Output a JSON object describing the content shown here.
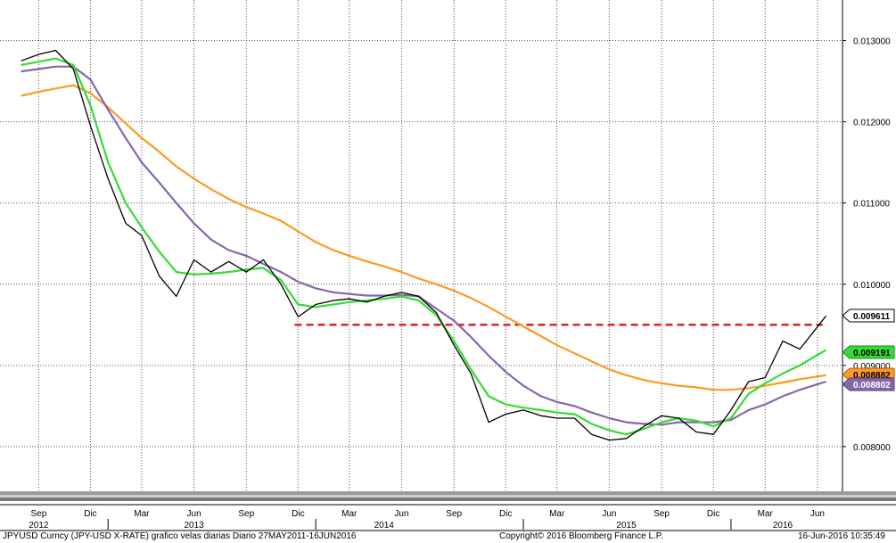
{
  "chart_data": {
    "type": "line",
    "x": [
      "2012-08-01",
      "2012-09-01",
      "2012-10-01",
      "2012-11-01",
      "2012-12-01",
      "2013-01-01",
      "2013-02-01",
      "2013-03-01",
      "2013-04-01",
      "2013-05-01",
      "2013-06-01",
      "2013-07-01",
      "2013-08-01",
      "2013-09-01",
      "2013-10-01",
      "2013-11-01",
      "2013-12-01",
      "2014-01-01",
      "2014-02-01",
      "2014-03-01",
      "2014-04-01",
      "2014-05-01",
      "2014-06-01",
      "2014-07-01",
      "2014-08-01",
      "2014-09-01",
      "2014-10-01",
      "2014-11-01",
      "2014-12-01",
      "2015-01-01",
      "2015-02-01",
      "2015-03-01",
      "2015-04-01",
      "2015-05-01",
      "2015-06-01",
      "2015-07-01",
      "2015-08-01",
      "2015-09-01",
      "2015-10-01",
      "2015-11-01",
      "2015-12-01",
      "2016-01-01",
      "2016-02-01",
      "2016-03-01",
      "2016-04-01",
      "2016-05-01",
      "2016-06-16"
    ],
    "series": [
      {
        "kind": "price",
        "color": "#000000",
        "values": [
          0.01275,
          0.01283,
          0.01288,
          0.01265,
          0.01195,
          0.0113,
          0.01075,
          0.0106,
          0.0101,
          0.00985,
          0.0103,
          0.01015,
          0.01028,
          0.01015,
          0.0103,
          0.01,
          0.0096,
          0.00975,
          0.0098,
          0.00982,
          0.00978,
          0.00985,
          0.0099,
          0.00985,
          0.00965,
          0.00925,
          0.0089,
          0.0083,
          0.0084,
          0.00845,
          0.00838,
          0.00835,
          0.00835,
          0.00815,
          0.00808,
          0.0081,
          0.00825,
          0.00838,
          0.00835,
          0.00818,
          0.00815,
          0.00845,
          0.0088,
          0.00885,
          0.0093,
          0.0092,
          0.00961
        ]
      },
      {
        "kind": "short-moving-average",
        "color": "#33dd33",
        "values": [
          0.0127,
          0.01274,
          0.01278,
          0.0127,
          0.0122,
          0.0115,
          0.011,
          0.0107,
          0.0104,
          0.01015,
          0.01012,
          0.01013,
          0.01015,
          0.01018,
          0.0102,
          0.01005,
          0.00975,
          0.00972,
          0.00975,
          0.00978,
          0.0098,
          0.00982,
          0.00985,
          0.0098,
          0.00962,
          0.0093,
          0.00895,
          0.00862,
          0.00852,
          0.00848,
          0.00845,
          0.00842,
          0.0084,
          0.00828,
          0.0082,
          0.00815,
          0.00822,
          0.0083,
          0.00835,
          0.00832,
          0.00825,
          0.00835,
          0.00865,
          0.00878,
          0.0089,
          0.009,
          0.00919
        ]
      },
      {
        "kind": "medium-moving-average",
        "color": "#8866aa",
        "values": [
          0.01262,
          0.01265,
          0.01268,
          0.01268,
          0.01252,
          0.01215,
          0.0118,
          0.0115,
          0.01125,
          0.011,
          0.01075,
          0.01055,
          0.01042,
          0.01035,
          0.01025,
          0.01015,
          0.01003,
          0.00995,
          0.0099,
          0.00988,
          0.00986,
          0.00986,
          0.00987,
          0.00985,
          0.0097,
          0.00955,
          0.00935,
          0.00912,
          0.00892,
          0.00875,
          0.00862,
          0.00855,
          0.0085,
          0.00842,
          0.00835,
          0.0083,
          0.00828,
          0.00827,
          0.0083,
          0.0083,
          0.0083,
          0.00833,
          0.00845,
          0.00852,
          0.00862,
          0.0087,
          0.0088
        ]
      },
      {
        "kind": "long-moving-average",
        "color": "#ff9922",
        "values": [
          0.01232,
          0.01237,
          0.01241,
          0.01245,
          0.01235,
          0.01218,
          0.01198,
          0.0118,
          0.01163,
          0.01145,
          0.0113,
          0.01117,
          0.01105,
          0.01095,
          0.01087,
          0.01078,
          0.01065,
          0.01052,
          0.01042,
          0.01035,
          0.01028,
          0.01022,
          0.01015,
          0.01007,
          0.01,
          0.00992,
          0.00983,
          0.00972,
          0.0096,
          0.00948,
          0.00936,
          0.00925,
          0.00915,
          0.00905,
          0.00895,
          0.00888,
          0.00882,
          0.00878,
          0.00875,
          0.00873,
          0.0087,
          0.0087,
          0.00872,
          0.00875,
          0.00879,
          0.00883,
          0.00888
        ]
      }
    ],
    "reference_line": {
      "value": 0.0095,
      "start": "2013-11-25",
      "end": "2016-06-10",
      "color": "#e02020",
      "style": "dashed"
    },
    "y_ticks": [
      "0.013000",
      "0.012000",
      "0.011000",
      "0.010000",
      "0.009000",
      "0.008000"
    ],
    "y_tick_values": [
      0.013,
      0.012,
      0.011,
      0.01,
      0.009,
      0.008
    ],
    "ylim": [
      0.00745,
      0.0135
    ],
    "xlim": [
      "2012-06-25",
      "2016-07-15"
    ],
    "x_ticks": [
      {
        "label": "Sep",
        "date": "2012-09-01"
      },
      {
        "label": "Dic",
        "date": "2012-12-01"
      },
      {
        "label": "Mar",
        "date": "2013-03-01"
      },
      {
        "label": "Jun",
        "date": "2013-06-01"
      },
      {
        "label": "Sep",
        "date": "2013-09-01"
      },
      {
        "label": "Dic",
        "date": "2013-12-01"
      },
      {
        "label": "Mar",
        "date": "2014-03-01"
      },
      {
        "label": "Jun",
        "date": "2014-06-01"
      },
      {
        "label": "Sep",
        "date": "2014-09-01"
      },
      {
        "label": "Dic",
        "date": "2014-12-01"
      },
      {
        "label": "Mar",
        "date": "2015-03-01"
      },
      {
        "label": "Jun",
        "date": "2015-06-01"
      },
      {
        "label": "Sep",
        "date": "2015-09-01"
      },
      {
        "label": "Dic",
        "date": "2015-12-01"
      },
      {
        "label": "Mar",
        "date": "2016-03-01"
      },
      {
        "label": "Jun",
        "date": "2016-06-01"
      }
    ],
    "year_labels": [
      {
        "label": "2012",
        "date": "2012-09-01"
      },
      {
        "label": "2013",
        "date": "2013-06-01"
      },
      {
        "label": "2014",
        "date": "2014-05-01"
      },
      {
        "label": "2015",
        "date": "2015-07-01"
      },
      {
        "label": "2016",
        "date": "2016-04-01"
      }
    ],
    "value_tags": [
      {
        "text": "0.009611",
        "value": 0.009611,
        "bg": "#ffffff",
        "fg": "#000000",
        "border": "#000000"
      },
      {
        "text": "0.009191",
        "value": 0.009191,
        "bg": "#33dd33",
        "fg": "#000000",
        "border": "#1a8a1a"
      },
      {
        "text": "0.008882",
        "value": 0.008882,
        "bg": "#ff9922",
        "fg": "#000000",
        "border": "#b06010"
      },
      {
        "text": "0.008802",
        "value": 0.008802,
        "bg": "#8866aa",
        "fg": "#ffffff",
        "border": "#5a4080"
      }
    ],
    "grid": true
  },
  "footer": {
    "left": "JPYUSD Curncy (JPY-USD X-RATE) grafico velas diarias  Diario 27MAY2011-16JUN2016",
    "center": "Copyright© 2016 Bloomberg Finance L.P.",
    "right": "16-Jun-2016 10:35:49"
  }
}
